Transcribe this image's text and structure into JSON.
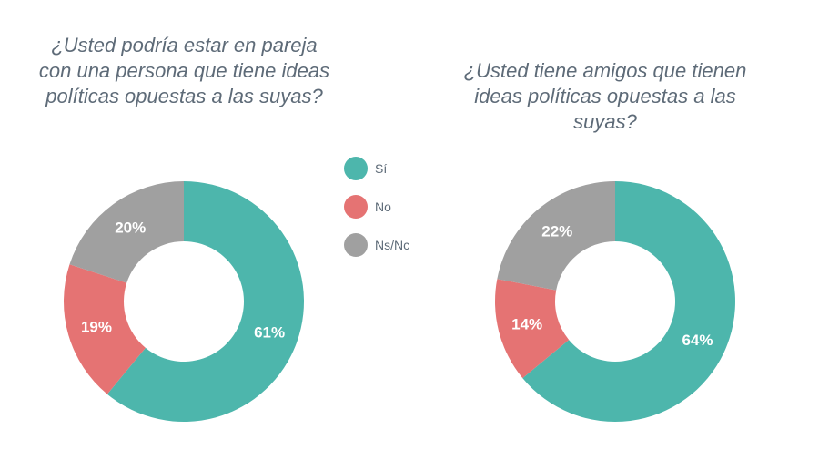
{
  "colors": {
    "si": "#4db6ac",
    "no": "#e57373",
    "nsnc": "#a0a0a0",
    "title": "#5e6b78"
  },
  "legend": [
    {
      "key": "si",
      "label": "Sí"
    },
    {
      "key": "no",
      "label": "No"
    },
    {
      "key": "nsnc",
      "label": "Ns/Nc"
    }
  ],
  "chart_data": [
    {
      "type": "pie",
      "variant": "donut",
      "title": "¿Usted podría estar en pareja con una persona que tiene ideas políticas opuestas a las suyas?",
      "categories": [
        "Sí",
        "No",
        "Ns/Nc"
      ],
      "values": [
        61,
        19,
        20
      ],
      "value_labels": [
        "61%",
        "19%",
        "20%"
      ]
    },
    {
      "type": "pie",
      "variant": "donut",
      "title": "¿Usted tiene amigos que tienen ideas políticas opuestas a las suyas?",
      "categories": [
        "Sí",
        "No",
        "Ns/Nc"
      ],
      "values": [
        64,
        14,
        22
      ],
      "value_labels": [
        "64%",
        "14%",
        "22%"
      ]
    }
  ]
}
